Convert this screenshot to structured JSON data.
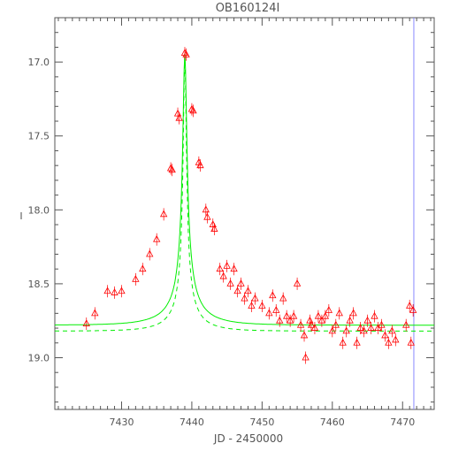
{
  "chart_data": {
    "type": "scatter",
    "title": "OB160124I",
    "xlabel": "JD - 2450000",
    "ylabel": "I",
    "xlim": [
      7420.5,
      7474.5
    ],
    "ylim": [
      19.35,
      16.7
    ],
    "y_inverted": true,
    "grid": false,
    "x_ticks": [
      7430,
      7440,
      7450,
      7460,
      7470
    ],
    "x_tick_labels": [
      "7430",
      "7440",
      "7450",
      "7460",
      "7470"
    ],
    "y_ticks": [
      17.0,
      17.5,
      18.0,
      18.5,
      19.0
    ],
    "y_tick_labels": [
      "17.0",
      "17.5",
      "18.0",
      "18.5",
      "19.0"
    ],
    "vertical_line_x": 7471.6,
    "colors": {
      "points": "#ff0000",
      "model": "#00ee00",
      "vline": "#8888ff",
      "axes": "#555555"
    },
    "series": [
      {
        "kind": "points",
        "marker": "triangle-open",
        "x": [
          7425.0,
          7426.2,
          7428.0,
          7429.0,
          7430.0,
          7432.0,
          7433.0,
          7434.0,
          7435.0,
          7436.0,
          7437.0,
          7437.2,
          7438.0,
          7438.2,
          7439.0,
          7439.2,
          7440.0,
          7440.2,
          7441.0,
          7441.2,
          7442.0,
          7442.2,
          7443.0,
          7443.2,
          7444.0,
          7444.5,
          7445.0,
          7445.5,
          7446.0,
          7446.5,
          7447.0,
          7447.5,
          7448.0,
          7448.5,
          7449.0,
          7450.0,
          7451.0,
          7451.5,
          7452.0,
          7452.5,
          7453.0,
          7453.5,
          7454.0,
          7454.5,
          7455.0,
          7455.5,
          7456.0,
          7456.2,
          7456.8,
          7457.0,
          7457.5,
          7458.0,
          7458.5,
          7459.0,
          7459.5,
          7460.0,
          7460.5,
          7461.0,
          7461.5,
          7462.0,
          7462.5,
          7463.0,
          7463.5,
          7464.0,
          7464.5,
          7465.0,
          7465.5,
          7466.0,
          7466.5,
          7467.0,
          7467.5,
          7468.0,
          7468.5,
          7469.0,
          7470.5,
          7471.0,
          7471.2,
          7471.5
        ],
        "y": [
          18.77,
          18.7,
          18.55,
          18.56,
          18.55,
          18.47,
          18.4,
          18.3,
          18.2,
          18.03,
          17.72,
          17.73,
          17.35,
          17.38,
          16.94,
          16.95,
          17.32,
          17.33,
          17.68,
          17.7,
          18.0,
          18.05,
          18.1,
          18.13,
          18.4,
          18.45,
          18.38,
          18.5,
          18.4,
          18.55,
          18.5,
          18.6,
          18.55,
          18.65,
          18.6,
          18.65,
          18.7,
          18.58,
          18.68,
          18.75,
          18.6,
          18.72,
          18.75,
          18.72,
          18.5,
          18.78,
          18.85,
          19.0,
          18.75,
          18.78,
          18.8,
          18.72,
          18.75,
          18.72,
          18.68,
          18.82,
          18.78,
          18.7,
          18.9,
          18.82,
          18.75,
          18.7,
          18.9,
          18.8,
          18.82,
          18.75,
          18.8,
          18.72,
          18.8,
          18.78,
          18.85,
          18.9,
          18.82,
          18.88,
          18.78,
          18.65,
          18.9,
          18.68
        ]
      },
      {
        "kind": "line",
        "style": "solid",
        "t0": 7439.0,
        "base": 18.78,
        "amp": 1.84,
        "u0": 0.045,
        "tE": 6.2
      },
      {
        "kind": "line",
        "style": "dashed",
        "t0": 7439.0,
        "base": 18.82,
        "amp": 1.88,
        "u0": 0.04,
        "tE": 5.2
      }
    ]
  }
}
